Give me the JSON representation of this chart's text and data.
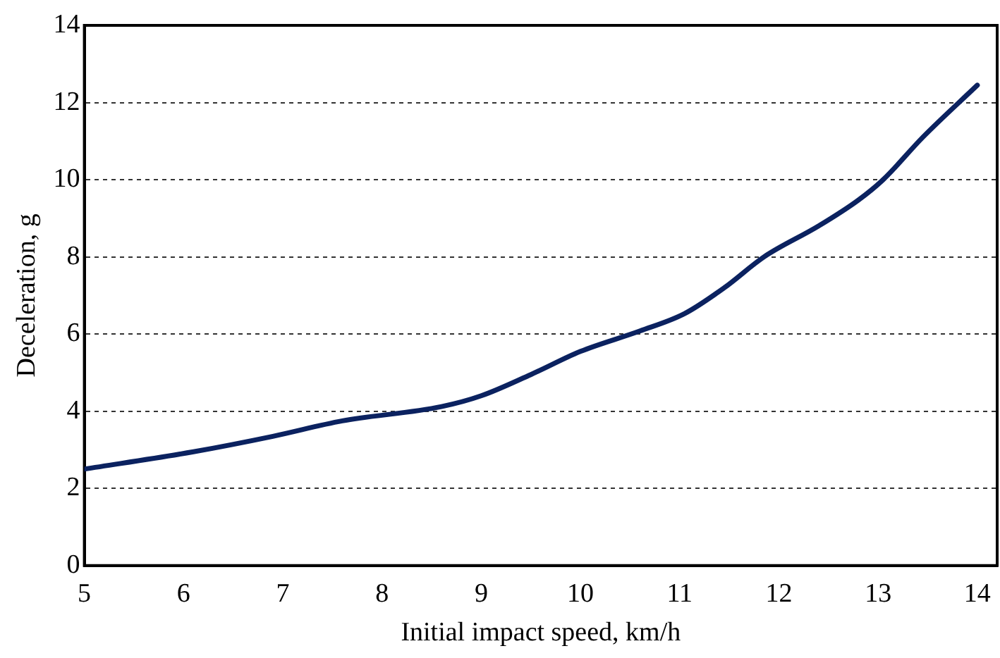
{
  "chart_data": {
    "type": "line",
    "xlabel": "Initial impact speed, km/h",
    "ylabel": "Deceleration, g",
    "x": [
      5,
      6.1,
      6.9,
      7.6,
      8.6,
      9,
      9.5,
      10,
      10.6,
      11.05,
      11.45,
      11.85,
      12.4,
      12.8,
      13.05,
      13.45,
      14
    ],
    "series": [
      {
        "color": "#0b2260",
        "values": [
          2.5,
          2.95,
          3.35,
          3.75,
          4.12,
          4.4,
          4.95,
          5.55,
          6.08,
          6.53,
          7.2,
          8.0,
          8.8,
          9.47,
          10.0,
          11.1,
          12.45
        ]
      }
    ],
    "xlim": [
      5,
      14.2
    ],
    "xticks": [
      5,
      6,
      7,
      8,
      9,
      10,
      11,
      12,
      13,
      14
    ],
    "ylim": [
      0,
      14
    ],
    "yticks": [
      0,
      2,
      4,
      6,
      8,
      10,
      12,
      14
    ],
    "grid": "y",
    "legend": false,
    "marker": "none",
    "line_style": "solid"
  }
}
